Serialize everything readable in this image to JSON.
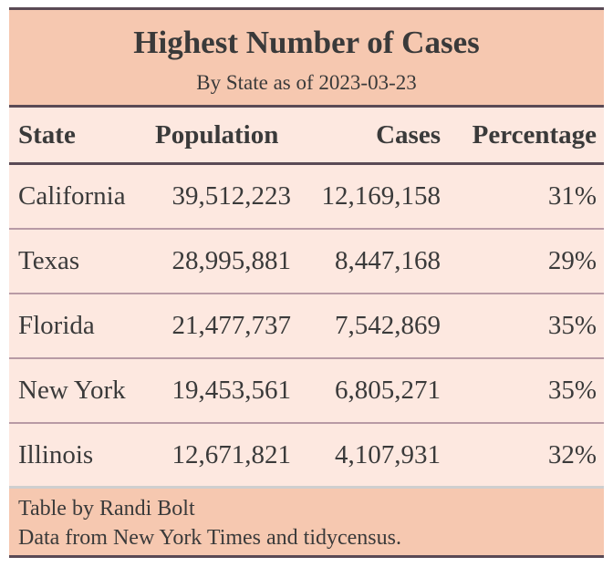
{
  "table": {
    "title": "Highest Number of Cases",
    "subtitle": "By State as of 2023-03-23",
    "headers": [
      "State",
      "Population",
      "Cases",
      "Percentage"
    ],
    "rows": [
      [
        "California",
        "39,512,223",
        "12,169,158",
        "31%"
      ],
      [
        "Texas",
        "28,995,881",
        "8,447,168",
        "29%"
      ],
      [
        "Florida",
        "21,477,737",
        "7,542,869",
        "35%"
      ],
      [
        "New York",
        "19,453,561",
        "6,805,271",
        "35%"
      ],
      [
        "Illinois",
        "12,671,821",
        "4,107,931",
        "32%"
      ]
    ],
    "source_notes": [
      "Table by Randi Bolt",
      "Data from New York Times and tidycensus."
    ]
  },
  "colors": {
    "header_band": "#f6c8b0",
    "body_background": "#fde8e0",
    "rule": "#5a4a55",
    "text": "#3a3a3a"
  }
}
